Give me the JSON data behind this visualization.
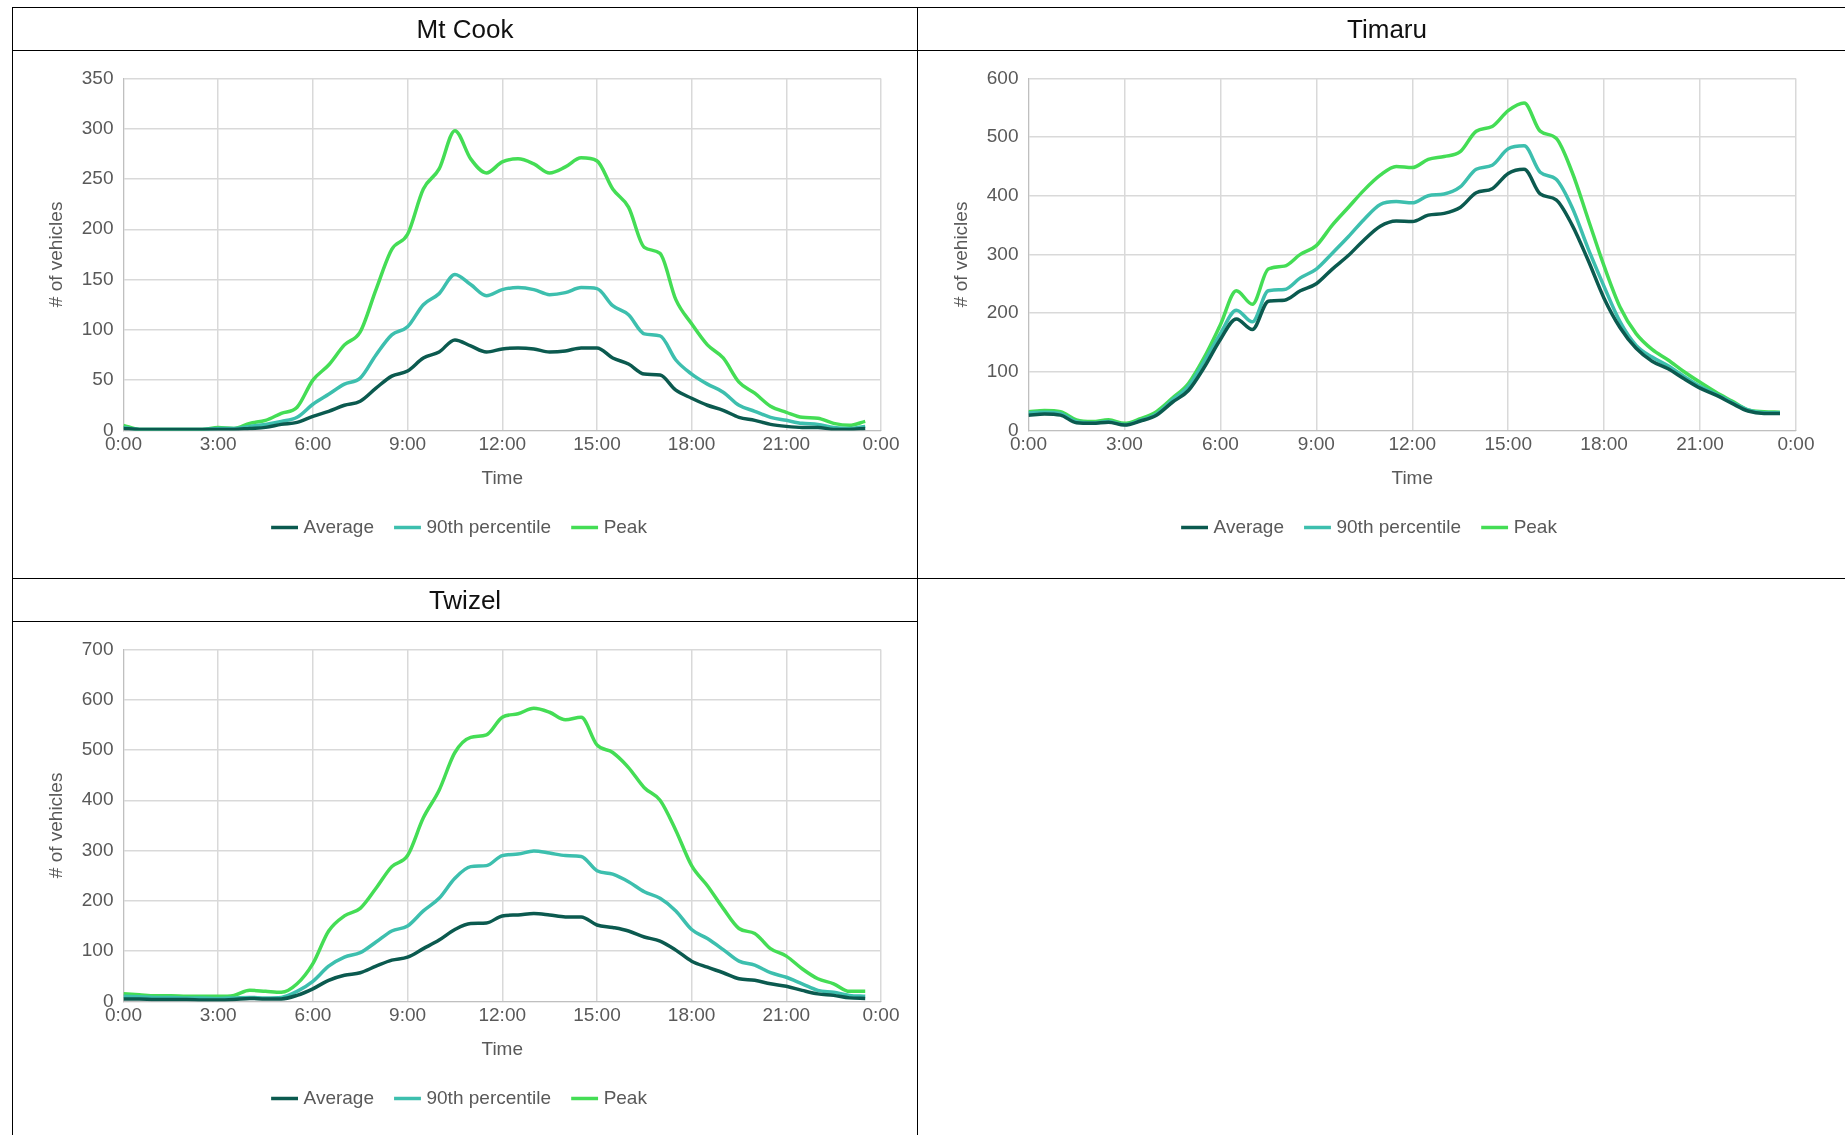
{
  "chart_data": [
    {
      "type": "line",
      "title": "Mt Cook",
      "xlabel": "Time",
      "ylabel": "# of vehicles",
      "x": [
        0,
        0.5,
        1,
        1.5,
        2,
        2.5,
        3,
        3.5,
        4,
        4.5,
        5,
        5.5,
        6,
        6.5,
        7,
        7.5,
        8,
        8.5,
        9,
        9.5,
        10,
        10.5,
        11,
        11.5,
        12,
        12.5,
        13,
        13.5,
        14,
        14.5,
        15,
        15.5,
        16,
        16.5,
        17,
        17.5,
        18,
        18.5,
        19,
        19.5,
        20,
        20.5,
        21,
        21.5,
        22,
        22.5,
        23,
        23.5
      ],
      "xlim": [
        0,
        24
      ],
      "xticks": [
        {
          "value": 0,
          "label": "0:00"
        },
        {
          "value": 3,
          "label": "3:00"
        },
        {
          "value": 6,
          "label": "6:00"
        },
        {
          "value": 9,
          "label": "9:00"
        },
        {
          "value": 12,
          "label": "12:00"
        },
        {
          "value": 15,
          "label": "15:00"
        },
        {
          "value": 18,
          "label": "18:00"
        },
        {
          "value": 21,
          "label": "21:00"
        },
        {
          "value": 24,
          "label": "0:00"
        }
      ],
      "ylim": [
        0,
        350
      ],
      "yticks": [
        0,
        50,
        100,
        150,
        200,
        250,
        300,
        350
      ],
      "grid": true,
      "legend": "bottom",
      "series": [
        {
          "name": "Average",
          "color": "#0b5a4f",
          "values": [
            2,
            1,
            1,
            1,
            1,
            1,
            1,
            1,
            2,
            3,
            6,
            8,
            14,
            19,
            25,
            29,
            42,
            54,
            59,
            72,
            78,
            90,
            84,
            78,
            81,
            82,
            81,
            78,
            79,
            82,
            82,
            72,
            66,
            56,
            55,
            40,
            32,
            25,
            20,
            13,
            10,
            6,
            4,
            3,
            3,
            1,
            1,
            2
          ]
        },
        {
          "name": "90th percentile",
          "color": "#3dbfae",
          "values": [
            3,
            1,
            1,
            1,
            1,
            1,
            2,
            2,
            4,
            6,
            9,
            13,
            26,
            36,
            46,
            52,
            75,
            95,
            103,
            125,
            136,
            155,
            145,
            134,
            140,
            142,
            140,
            135,
            137,
            142,
            141,
            124,
            115,
            96,
            94,
            70,
            56,
            46,
            38,
            25,
            19,
            13,
            10,
            7,
            6,
            3,
            2,
            4
          ]
        },
        {
          "name": "Peak",
          "color": "#44dd55",
          "values": [
            5,
            1,
            1,
            1,
            1,
            1,
            3,
            2,
            7,
            10,
            17,
            23,
            50,
            65,
            85,
            98,
            140,
            180,
            195,
            240,
            260,
            298,
            270,
            256,
            267,
            270,
            265,
            256,
            262,
            271,
            268,
            240,
            222,
            182,
            176,
            130,
            106,
            85,
            72,
            48,
            37,
            24,
            18,
            13,
            12,
            7,
            5,
            9
          ]
        }
      ]
    },
    {
      "type": "line",
      "title": "Timaru",
      "xlabel": "Time",
      "ylabel": "# of vehicles",
      "x": [
        0,
        0.5,
        1,
        1.5,
        2,
        2.5,
        3,
        3.5,
        4,
        4.5,
        5,
        5.5,
        6,
        6.5,
        7,
        7.5,
        8,
        8.5,
        9,
        9.5,
        10,
        10.5,
        11,
        11.5,
        12,
        12.5,
        13,
        13.5,
        14,
        14.5,
        15,
        15.5,
        16,
        16.5,
        17,
        17.5,
        18,
        18.5,
        19,
        19.5,
        20,
        20.5,
        21,
        21.5,
        22,
        22.5,
        23,
        23.5
      ],
      "xlim": [
        0,
        24
      ],
      "xticks": [
        {
          "value": 0,
          "label": "0:00"
        },
        {
          "value": 3,
          "label": "3:00"
        },
        {
          "value": 6,
          "label": "6:00"
        },
        {
          "value": 9,
          "label": "9:00"
        },
        {
          "value": 12,
          "label": "12:00"
        },
        {
          "value": 15,
          "label": "15:00"
        },
        {
          "value": 18,
          "label": "18:00"
        },
        {
          "value": 21,
          "label": "21:00"
        },
        {
          "value": 24,
          "label": "0:00"
        }
      ],
      "ylim": [
        0,
        600
      ],
      "yticks": [
        0,
        100,
        200,
        300,
        400,
        500,
        600
      ],
      "grid": true,
      "legend": "bottom",
      "series": [
        {
          "name": "Average",
          "color": "#0b5a4f",
          "values": [
            26,
            28,
            26,
            13,
            12,
            14,
            9,
            16,
            26,
            48,
            68,
            108,
            155,
            190,
            172,
            220,
            222,
            238,
            250,
            275,
            298,
            325,
            348,
            357,
            356,
            367,
            370,
            380,
            405,
            412,
            438,
            445,
            403,
            393,
            350,
            290,
            225,
            175,
            140,
            118,
            105,
            88,
            72,
            60,
            46,
            33,
            29,
            29
          ]
        },
        {
          "name": "90th percentile",
          "color": "#3dbfae",
          "values": [
            30,
            31,
            29,
            15,
            13,
            15,
            10,
            17,
            28,
            52,
            75,
            118,
            165,
            205,
            185,
            238,
            240,
            260,
            275,
            302,
            330,
            360,
            385,
            390,
            388,
            400,
            403,
            415,
            445,
            452,
            480,
            485,
            440,
            428,
            380,
            310,
            245,
            185,
            145,
            125,
            110,
            92,
            75,
            62,
            48,
            35,
            30,
            30
          ]
        },
        {
          "name": "Peak",
          "color": "#44dd55",
          "values": [
            32,
            34,
            32,
            18,
            15,
            18,
            12,
            20,
            32,
            55,
            80,
            125,
            180,
            238,
            215,
            275,
            280,
            300,
            315,
            350,
            380,
            410,
            435,
            450,
            448,
            462,
            467,
            475,
            510,
            518,
            545,
            558,
            510,
            498,
            440,
            360,
            280,
            210,
            165,
            138,
            120,
            100,
            82,
            65,
            50,
            35,
            32,
            31
          ]
        }
      ]
    },
    {
      "type": "line",
      "title": "Twizel",
      "xlabel": "Time",
      "ylabel": "# of vehicles",
      "x": [
        0,
        0.5,
        1,
        1.5,
        2,
        2.5,
        3,
        3.5,
        4,
        4.5,
        5,
        5.5,
        6,
        6.5,
        7,
        7.5,
        8,
        8.5,
        9,
        9.5,
        10,
        10.5,
        11,
        11.5,
        12,
        12.5,
        13,
        13.5,
        14,
        14.5,
        15,
        15.5,
        16,
        16.5,
        17,
        17.5,
        18,
        18.5,
        19,
        19.5,
        20,
        20.5,
        21,
        21.5,
        22,
        22.5,
        23,
        23.5
      ],
      "xlim": [
        0,
        24
      ],
      "xticks": [
        {
          "value": 0,
          "label": "0:00"
        },
        {
          "value": 3,
          "label": "3:00"
        },
        {
          "value": 6,
          "label": "6:00"
        },
        {
          "value": 9,
          "label": "9:00"
        },
        {
          "value": 12,
          "label": "12:00"
        },
        {
          "value": 15,
          "label": "15:00"
        },
        {
          "value": 18,
          "label": "18:00"
        },
        {
          "value": 21,
          "label": "21:00"
        },
        {
          "value": 24,
          "label": "0:00"
        }
      ],
      "ylim": [
        0,
        700
      ],
      "yticks": [
        0,
        100,
        200,
        300,
        400,
        500,
        600,
        700
      ],
      "grid": true,
      "legend": "bottom",
      "series": [
        {
          "name": "Average",
          "color": "#0b5a4f",
          "values": [
            5,
            5,
            4,
            4,
            4,
            3,
            3,
            4,
            6,
            5,
            5,
            12,
            25,
            42,
            52,
            57,
            70,
            82,
            88,
            105,
            122,
            143,
            155,
            156,
            170,
            172,
            175,
            172,
            168,
            168,
            152,
            147,
            140,
            128,
            120,
            102,
            80,
            68,
            57,
            45,
            42,
            35,
            30,
            22,
            15,
            12,
            7,
            6
          ]
        },
        {
          "name": "90th percentile",
          "color": "#3dbfae",
          "values": [
            10,
            9,
            8,
            8,
            7,
            7,
            6,
            7,
            8,
            7,
            8,
            20,
            40,
            70,
            88,
            97,
            118,
            140,
            150,
            180,
            205,
            245,
            268,
            270,
            290,
            293,
            299,
            295,
            290,
            288,
            260,
            253,
            238,
            218,
            205,
            180,
            143,
            125,
            103,
            80,
            72,
            57,
            48,
            35,
            22,
            18,
            12,
            10
          ]
        },
        {
          "name": "Peak",
          "color": "#44dd55",
          "values": [
            15,
            13,
            11,
            11,
            10,
            10,
            10,
            12,
            22,
            20,
            18,
            35,
            75,
            140,
            170,
            185,
            225,
            268,
            290,
            365,
            420,
            495,
            525,
            530,
            565,
            572,
            583,
            575,
            560,
            565,
            510,
            495,
            465,
            425,
            400,
            340,
            270,
            230,
            185,
            145,
            135,
            105,
            90,
            65,
            45,
            35,
            20,
            20
          ]
        }
      ]
    }
  ]
}
